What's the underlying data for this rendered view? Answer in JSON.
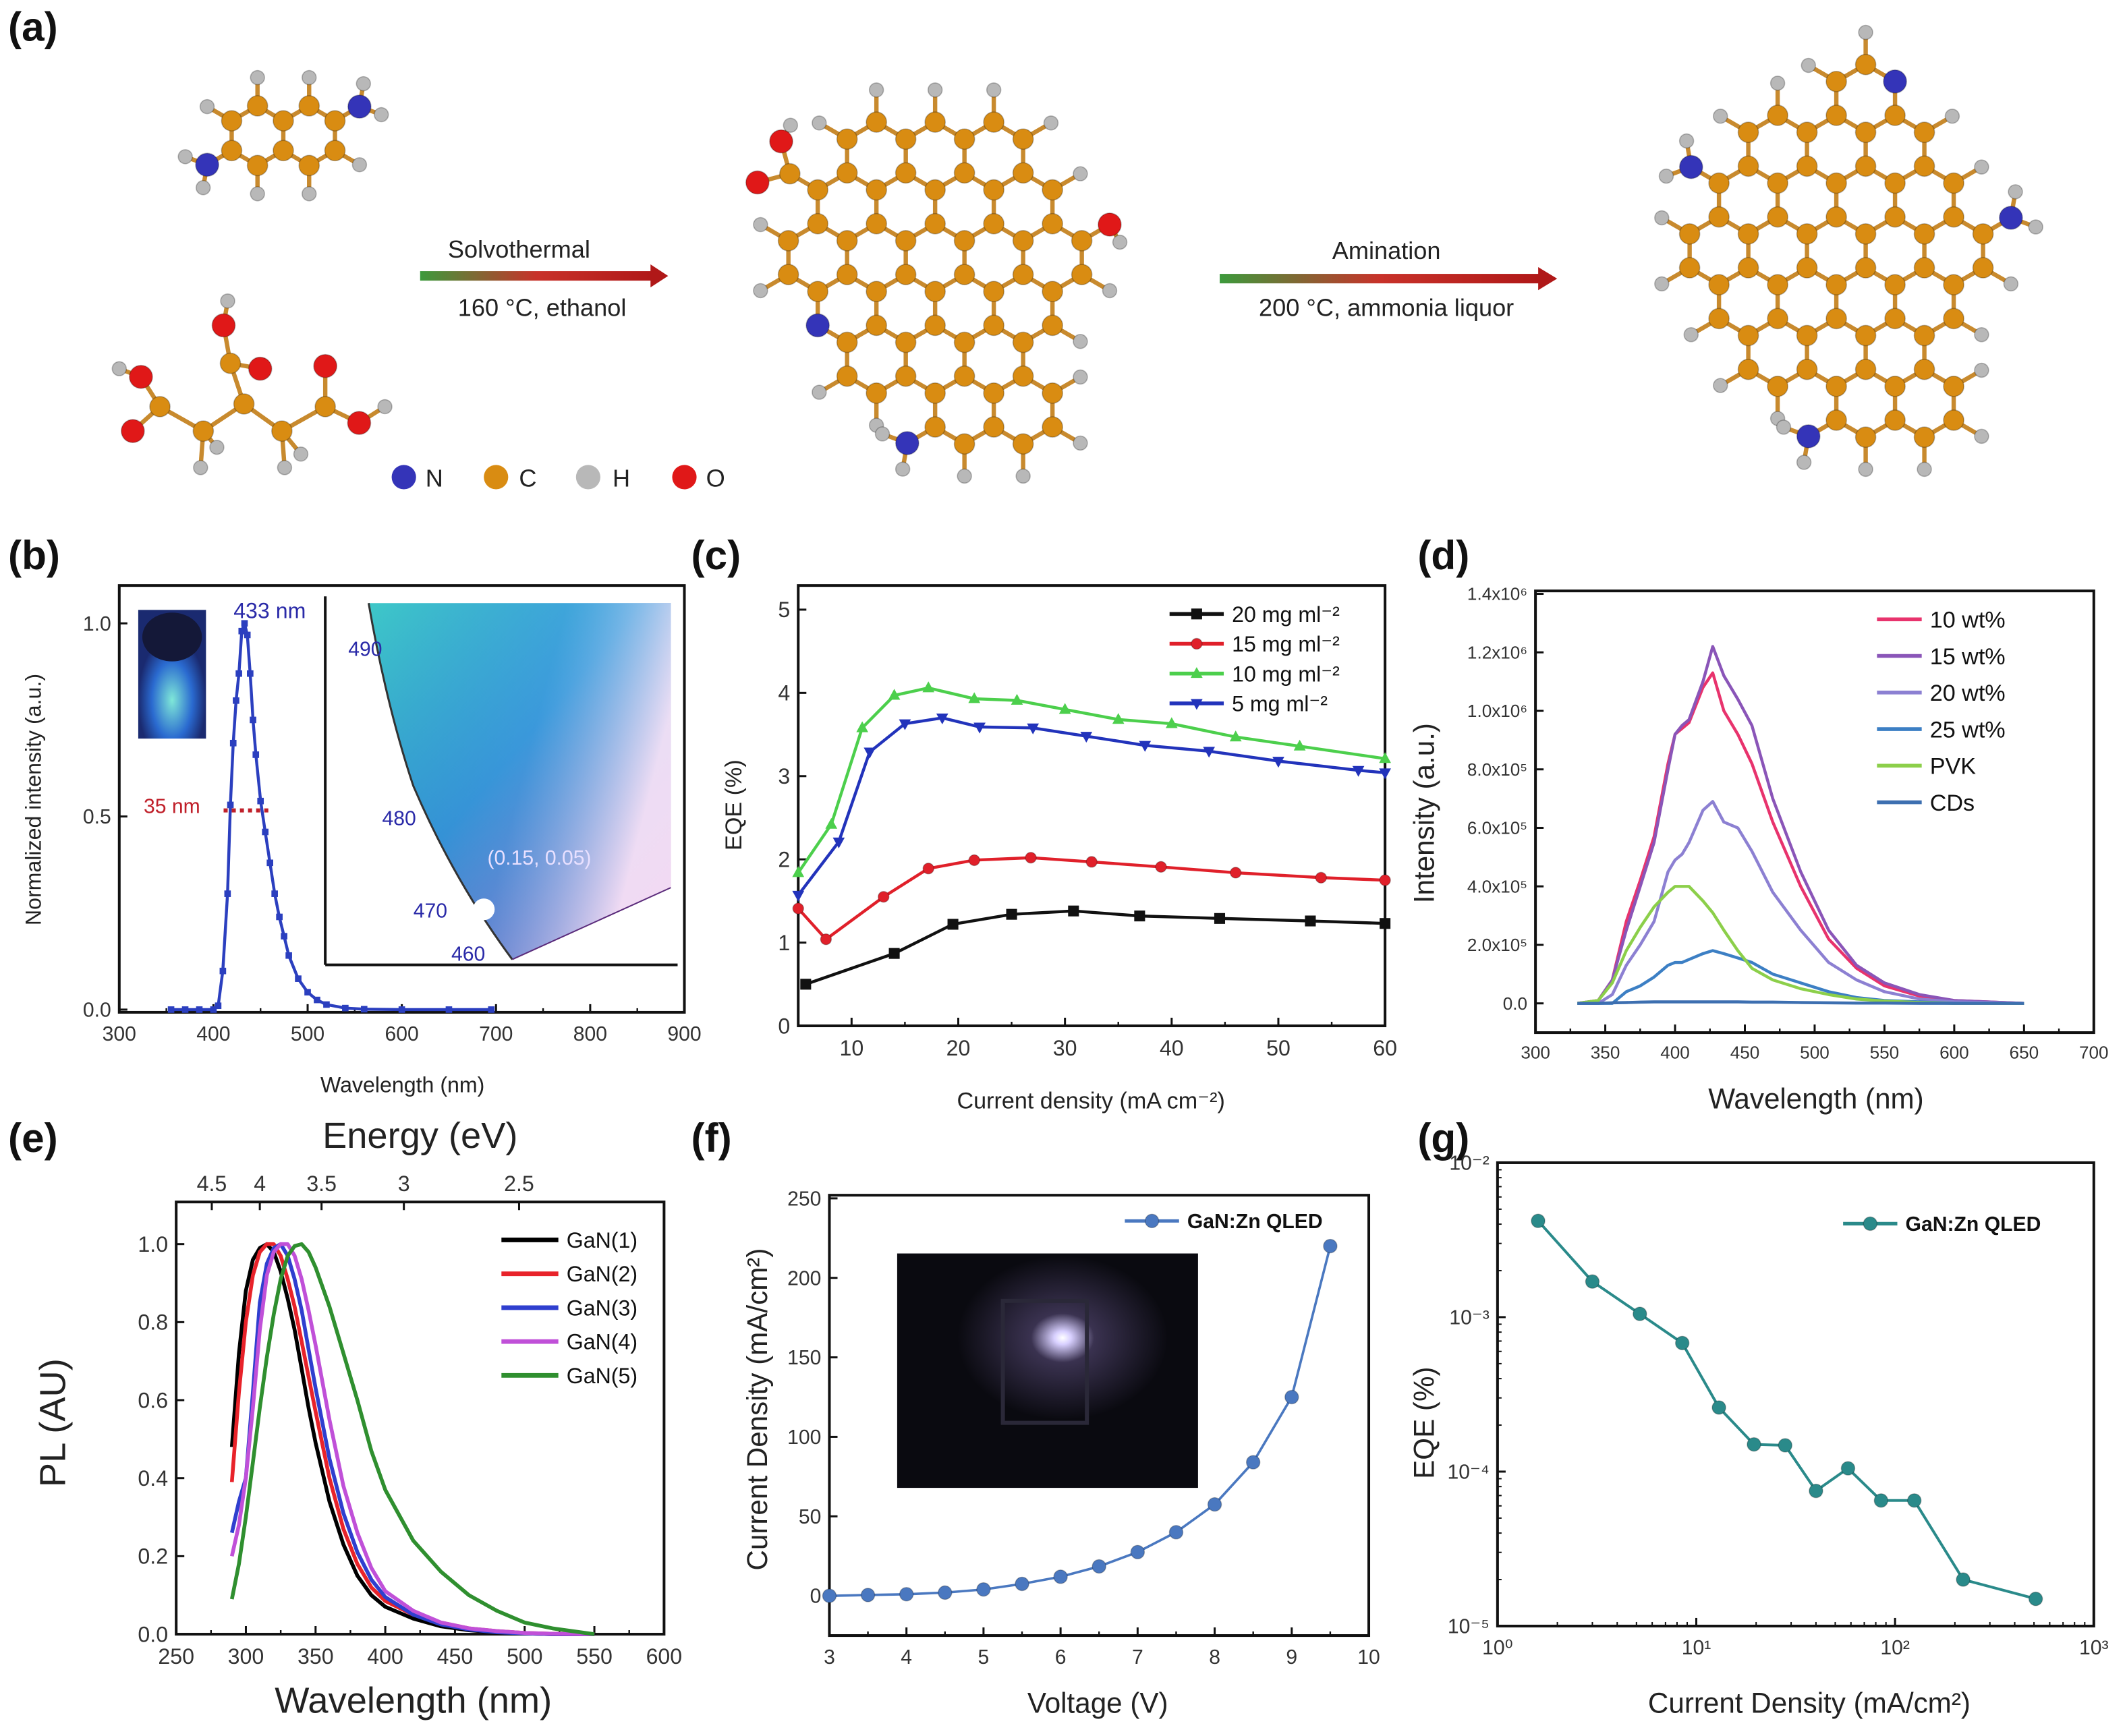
{
  "panel_labels": [
    "(a)",
    "(b)",
    "(c)",
    "(d)",
    "(e)",
    "(f)",
    "(g)"
  ],
  "panel_a": {
    "arrow1_top": "Solvothermal",
    "arrow1_bottom": "160 °C, ethanol",
    "arrow2_top": "Amination",
    "arrow2_bottom": "200 °C, ammonia liquor",
    "legend": [
      {
        "label": "N",
        "color": "#3434b8"
      },
      {
        "label": "C",
        "color": "#d98c12"
      },
      {
        "label": "H",
        "color": "#b8b8b8"
      },
      {
        "label": "O",
        "color": "#e01818"
      }
    ]
  },
  "chart_data": [
    {
      "type": "line",
      "xlabel": "Wavelength (nm)",
      "ylabel": "Normalized intensity (a.u.)",
      "xlim": [
        300,
        900
      ],
      "ylim": [
        -0.007,
        1.098
      ],
      "xticks": [
        300,
        400,
        500,
        600,
        700,
        800,
        900
      ],
      "xticklabels": [
        "300",
        "400",
        "500",
        "600",
        "700",
        "800",
        "900"
      ],
      "yticks": [
        0,
        0.5,
        1.0
      ],
      "yticklabels": [
        "0.0",
        "0.5",
        "1.0"
      ],
      "series": [
        {
          "color": "#2b3fbf",
          "marker": "square",
          "x": [
            355,
            370,
            385,
            400,
            405,
            410,
            415,
            418,
            421,
            424,
            427,
            430,
            433,
            436,
            439,
            442,
            445,
            450,
            455,
            460,
            465,
            470,
            475,
            480,
            490,
            500,
            510,
            520,
            540,
            560,
            600,
            650,
            695
          ],
          "y": [
            0,
            0,
            0,
            0,
            0.01,
            0.1,
            0.3,
            0.53,
            0.69,
            0.8,
            0.87,
            0.98,
            1.0,
            0.97,
            0.87,
            0.75,
            0.66,
            0.54,
            0.46,
            0.38,
            0.3,
            0.24,
            0.19,
            0.14,
            0.08,
            0.045,
            0.025,
            0.013,
            0.004,
            0.001,
            0,
            0,
            0
          ]
        }
      ],
      "annotations": {
        "peak": "433 nm",
        "fwhm": "35 nm",
        "fwhm_color": "#c0202a"
      },
      "inset": {
        "wavelength_labels": [
          "490",
          "480",
          "470",
          "460"
        ],
        "coordinate": "(0.15, 0.05)"
      }
    },
    {
      "type": "line",
      "xlabel": "Current density (mA cm⁻²)",
      "ylabel": "EQE (%)",
      "xlim": [
        5,
        60
      ],
      "ylim": [
        0,
        5.29
      ],
      "xticks": [
        10,
        20,
        30,
        40,
        50,
        60
      ],
      "xticklabels": [
        "10",
        "20",
        "30",
        "40",
        "50",
        "60"
      ],
      "yticks": [
        0,
        1,
        2,
        3,
        4,
        5
      ],
      "yticklabels": [
        "0",
        "1",
        "2",
        "3",
        "4",
        "5"
      ],
      "legend": "top-right",
      "series": [
        {
          "name": "20 mg ml⁻²",
          "color": "#111111",
          "marker": "square",
          "x": [
            5.7,
            14,
            19.5,
            25,
            30.8,
            37,
            44.5,
            53,
            60
          ],
          "y": [
            0.5,
            0.87,
            1.22,
            1.34,
            1.38,
            1.32,
            1.29,
            1.26,
            1.23
          ]
        },
        {
          "name": "15 mg ml⁻²",
          "color": "#e0202a",
          "marker": "circle",
          "x": [
            5,
            7.6,
            13,
            17.2,
            21.5,
            26.8,
            32.5,
            39,
            46,
            54,
            60
          ],
          "y": [
            1.41,
            1.04,
            1.55,
            1.89,
            1.99,
            2.02,
            1.97,
            1.91,
            1.84,
            1.78,
            1.75
          ]
        },
        {
          "name": "10 mg ml⁻²",
          "color": "#4ccf4c",
          "marker": "triangle",
          "x": [
            5,
            8.1,
            11,
            14,
            17.2,
            21.5,
            25.5,
            30,
            35,
            40,
            46,
            52,
            60
          ],
          "y": [
            1.84,
            2.42,
            3.58,
            3.97,
            4.06,
            3.93,
            3.91,
            3.8,
            3.68,
            3.63,
            3.47,
            3.36,
            3.21
          ]
        },
        {
          "name": "5  mg ml⁻²",
          "color": "#2233bb",
          "marker": "triangle-down",
          "x": [
            5,
            8.8,
            11.7,
            15,
            18.5,
            22,
            27,
            32,
            37.5,
            43.5,
            50,
            57.5,
            60
          ],
          "y": [
            1.57,
            2.21,
            3.29,
            3.63,
            3.7,
            3.59,
            3.58,
            3.48,
            3.37,
            3.3,
            3.18,
            3.07,
            3.04
          ]
        }
      ]
    },
    {
      "type": "line",
      "xlabel": "Wavelength (nm)",
      "ylabel": "Intensity (a.u.)",
      "xlim": [
        300,
        700
      ],
      "ylim": [
        -0.1,
        1.41
      ],
      "yunit": 1000000,
      "xticks": [
        300,
        350,
        400,
        450,
        500,
        550,
        600,
        650,
        700
      ],
      "xticklabels": [
        "300",
        "350",
        "400",
        "450",
        "500",
        "550",
        "600",
        "650",
        "700"
      ],
      "yticks": [
        0,
        0.2,
        0.4,
        0.6,
        0.8,
        1.0,
        1.2,
        1.4
      ],
      "yticklabels": [
        "0.0",
        "2.0x10⁵",
        "4.0x10⁵",
        "6.0x10⁵",
        "8.0x10⁵",
        "1.0x10⁶",
        "1.2x10⁶",
        "1.4x10⁶"
      ],
      "legend": "top-right",
      "x": [
        330,
        345,
        355,
        365,
        375,
        385,
        395,
        400,
        405,
        410,
        420,
        427,
        435,
        445,
        455,
        470,
        490,
        510,
        530,
        550,
        575,
        600,
        650
      ],
      "series": [
        {
          "name": "10 wt%",
          "color": "#e8336d",
          "marker": "none",
          "y": [
            0,
            0.01,
            0.08,
            0.28,
            0.42,
            0.57,
            0.82,
            0.92,
            0.94,
            0.96,
            1.08,
            1.13,
            1.0,
            0.92,
            0.82,
            0.62,
            0.4,
            0.22,
            0.12,
            0.06,
            0.025,
            0.01,
            0
          ]
        },
        {
          "name": "15 wt%",
          "color": "#8a55b8",
          "marker": "none",
          "y": [
            0,
            0.01,
            0.08,
            0.25,
            0.4,
            0.55,
            0.8,
            0.92,
            0.95,
            0.97,
            1.1,
            1.22,
            1.12,
            1.04,
            0.95,
            0.7,
            0.45,
            0.25,
            0.13,
            0.07,
            0.03,
            0.01,
            0
          ]
        },
        {
          "name": "20 wt%",
          "color": "#8c80d2",
          "marker": "none",
          "y": [
            0,
            0,
            0.03,
            0.13,
            0.2,
            0.28,
            0.45,
            0.49,
            0.51,
            0.55,
            0.66,
            0.69,
            0.62,
            0.6,
            0.52,
            0.38,
            0.25,
            0.14,
            0.08,
            0.04,
            0.015,
            0.005,
            0
          ]
        },
        {
          "name": "25 wt%",
          "color": "#3c7fc4",
          "marker": "none",
          "y": [
            0,
            0,
            0,
            0.04,
            0.06,
            0.09,
            0.13,
            0.14,
            0.14,
            0.15,
            0.17,
            0.18,
            0.17,
            0.155,
            0.14,
            0.1,
            0.07,
            0.04,
            0.02,
            0.01,
            0.005,
            0,
            0
          ]
        },
        {
          "name": "PVK",
          "color": "#8ccf4a",
          "marker": "none",
          "y": [
            0,
            0.01,
            0.07,
            0.18,
            0.26,
            0.33,
            0.38,
            0.4,
            0.4,
            0.4,
            0.35,
            0.31,
            0.25,
            0.18,
            0.12,
            0.08,
            0.05,
            0.03,
            0.015,
            0.008,
            0.003,
            0,
            0
          ]
        },
        {
          "name": "CDs",
          "color": "#3d6fb0",
          "marker": "none",
          "y": [
            0,
            0,
            0.002,
            0.003,
            0.004,
            0.005,
            0.005,
            0.005,
            0.005,
            0.005,
            0.005,
            0.005,
            0.005,
            0.005,
            0.004,
            0.004,
            0.003,
            0.002,
            0.001,
            0.001,
            0,
            0,
            0
          ]
        }
      ]
    },
    {
      "type": "line",
      "xlabel": "Wavelength (nm)",
      "ylabel": "PL (AU)",
      "x2label": "Energy (eV)",
      "xlim": [
        250,
        600
      ],
      "ylim": [
        0,
        1.108
      ],
      "xticks": [
        250,
        300,
        350,
        400,
        450,
        500,
        550,
        600
      ],
      "xticklabels": [
        "250",
        "300",
        "350",
        "400",
        "450",
        "500",
        "550",
        "600"
      ],
      "x2ticks": [
        4.5,
        4,
        3.5,
        3,
        2.5
      ],
      "x2ticklabels": [
        "4.5",
        "4",
        "3.5",
        "3",
        "2.5"
      ],
      "yticks": [
        0,
        0.2,
        0.4,
        0.6,
        0.8,
        1.0
      ],
      "yticklabels": [
        "0.0",
        "0.2",
        "0.4",
        "0.6",
        "0.8",
        "1.0"
      ],
      "legend": "top-right",
      "x": [
        290,
        295,
        300,
        305,
        310,
        315,
        320,
        325,
        330,
        335,
        340,
        345,
        350,
        360,
        370,
        380,
        390,
        400,
        420,
        440,
        460,
        480,
        500,
        520,
        550
      ],
      "series": [
        {
          "name": "GaN(1)",
          "color": "#000000",
          "marker": "none",
          "y": [
            0.48,
            0.72,
            0.88,
            0.96,
            0.99,
            1.0,
            0.98,
            0.93,
            0.86,
            0.78,
            0.68,
            0.58,
            0.49,
            0.34,
            0.23,
            0.15,
            0.1,
            0.07,
            0.04,
            0.02,
            0.01,
            0.005,
            0.002,
            0,
            0
          ]
        },
        {
          "name": "GaN(2)",
          "color": "#e8232a",
          "marker": "none",
          "y": [
            0.39,
            0.62,
            0.8,
            0.92,
            0.98,
            1.0,
            1.0,
            0.97,
            0.91,
            0.84,
            0.75,
            0.66,
            0.57,
            0.4,
            0.27,
            0.18,
            0.12,
            0.085,
            0.05,
            0.03,
            0.015,
            0.008,
            0.003,
            0.001,
            0
          ]
        },
        {
          "name": "GaN(3)",
          "color": "#2f3fcf",
          "marker": "none",
          "y": [
            0.26,
            0.34,
            0.4,
            0.62,
            0.85,
            0.95,
            0.99,
            1.0,
            0.97,
            0.91,
            0.83,
            0.73,
            0.63,
            0.45,
            0.31,
            0.21,
            0.14,
            0.095,
            0.05,
            0.025,
            0.012,
            0.005,
            0.002,
            0,
            0
          ]
        },
        {
          "name": "GaN(4)",
          "color": "#c050d8",
          "marker": "none",
          "y": [
            0.2,
            0.28,
            0.4,
            0.58,
            0.78,
            0.92,
            0.98,
            1.0,
            1.0,
            0.97,
            0.91,
            0.83,
            0.74,
            0.55,
            0.38,
            0.26,
            0.17,
            0.11,
            0.06,
            0.03,
            0.015,
            0.008,
            0.003,
            0.001,
            0
          ]
        },
        {
          "name": "GaN(5)",
          "color": "#2f8f2f",
          "marker": "none",
          "y": [
            0.09,
            0.18,
            0.3,
            0.44,
            0.58,
            0.71,
            0.82,
            0.91,
            0.97,
            0.995,
            1.0,
            0.98,
            0.94,
            0.84,
            0.72,
            0.6,
            0.47,
            0.37,
            0.24,
            0.16,
            0.1,
            0.06,
            0.03,
            0.015,
            0
          ]
        }
      ]
    },
    {
      "type": "line",
      "xlabel": "Voltage (V)",
      "ylabel": "Current Density (mA/cm²)",
      "xlim": [
        3,
        10
      ],
      "ylim": [
        -25,
        252
      ],
      "xticks": [
        3,
        4,
        5,
        6,
        7,
        8,
        9,
        10
      ],
      "xticklabels": [
        "3",
        "4",
        "5",
        "6",
        "7",
        "8",
        "9",
        "10"
      ],
      "yticks": [
        0,
        50,
        100,
        150,
        200,
        250
      ],
      "yticklabels": [
        "0",
        "50",
        "100",
        "150",
        "200",
        "250"
      ],
      "legend": "top-right",
      "series": [
        {
          "name": "GaN:Zn QLED",
          "color": "#4a78c0",
          "marker": "circle",
          "x": [
            3,
            3.5,
            4,
            4.5,
            5,
            5.5,
            6,
            6.5,
            7,
            7.5,
            8,
            8.5,
            9,
            9.5
          ],
          "y": [
            0,
            0.5,
            1,
            2,
            4,
            7.5,
            12,
            18.5,
            27.5,
            40,
            57.5,
            84,
            125,
            220
          ]
        }
      ]
    },
    {
      "type": "line",
      "xlabel": "Current Density (mA/cm²)",
      "ylabel": "EQE (%)",
      "xscale": "log",
      "yscale": "log",
      "xlim": [
        1,
        1000
      ],
      "ylim": [
        1e-05,
        0.01
      ],
      "xticks": [
        1,
        10,
        100,
        1000
      ],
      "xticklabels": [
        "10⁰",
        "10¹",
        "10²",
        "10³"
      ],
      "yticks": [
        1e-05,
        0.0001,
        0.001,
        0.01
      ],
      "yticklabels": [
        "10⁻⁵",
        "10⁻⁴",
        "10⁻³",
        "10⁻²"
      ],
      "legend": "top-right",
      "series": [
        {
          "name": "GaN:Zn QLED",
          "color": "#2a8a8a",
          "marker": "circle",
          "x": [
            1.6,
            3,
            5.2,
            8.5,
            13,
            19.5,
            28,
            40,
            58,
            85,
            125,
            220,
            510
          ],
          "y": [
            0.0042,
            0.0017,
            0.00105,
            0.00068,
            0.00026,
            0.00015,
            0.000148,
            7.5e-05,
            0.000105,
            6.5e-05,
            6.5e-05,
            2e-05,
            1.5e-05
          ]
        }
      ]
    }
  ]
}
